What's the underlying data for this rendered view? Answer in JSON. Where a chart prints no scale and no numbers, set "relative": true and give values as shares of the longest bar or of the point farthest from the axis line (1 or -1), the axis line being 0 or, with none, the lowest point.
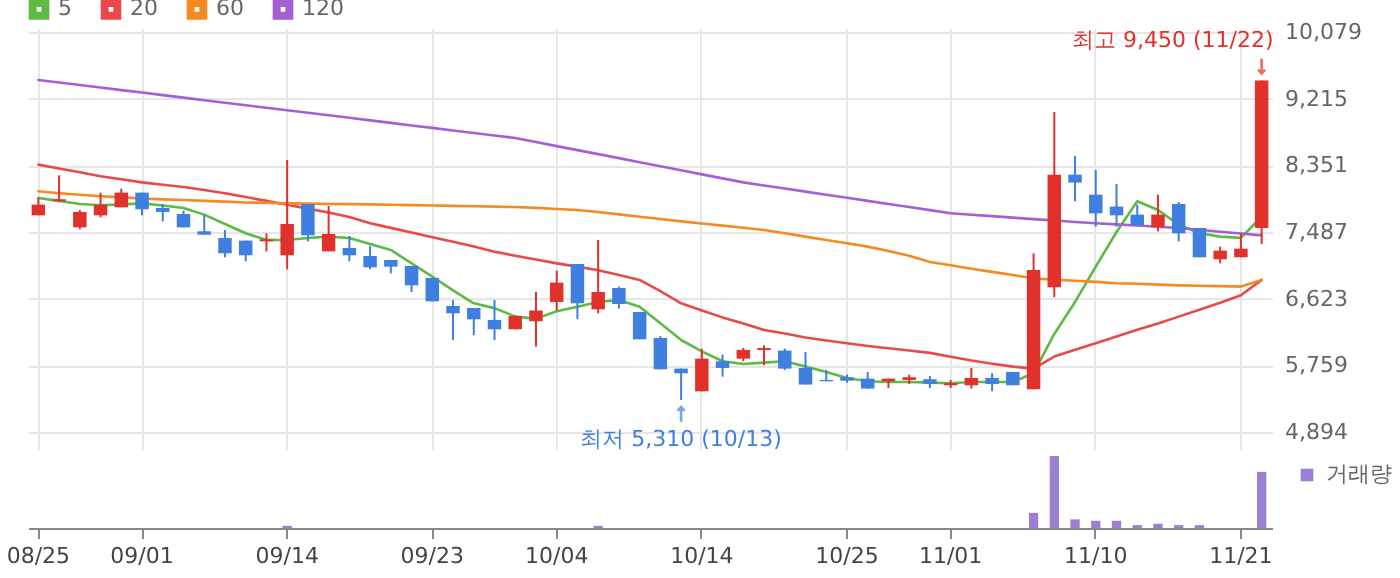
{
  "chart_data": [
    {
      "type": "candlestick",
      "categories": [
        null,
        null,
        null,
        null,
        null,
        null,
        null,
        null,
        null,
        null,
        null,
        null,
        null,
        null,
        null,
        null,
        null,
        null,
        null,
        null,
        null,
        null,
        null,
        null,
        null,
        null,
        null,
        null,
        null,
        null,
        null,
        null,
        null,
        null,
        null,
        null,
        null,
        null,
        null,
        null,
        null,
        null,
        null,
        null,
        null,
        null,
        null,
        null,
        null,
        null,
        null,
        null,
        null,
        null,
        null,
        null,
        null,
        null,
        null,
        null
      ],
      "ohlc": [
        [
          7703,
          7928,
          7703,
          7841
        ],
        [
          7884,
          8221,
          7876,
          7910
        ],
        [
          7547,
          7772,
          7522,
          7746
        ],
        [
          7703,
          7997,
          7677,
          7841
        ],
        [
          7807,
          8049,
          7807,
          7997
        ],
        [
          7997,
          7997,
          7703,
          7781
        ],
        [
          7798,
          7850,
          7625,
          7746
        ],
        [
          7720,
          7763,
          7547,
          7547
        ],
        [
          7496,
          7712,
          7452,
          7452
        ],
        [
          7409,
          7513,
          7159,
          7211
        ],
        [
          7375,
          7375,
          7107,
          7185
        ],
        [
          7366,
          7470,
          7236,
          7392
        ],
        [
          7185,
          8420,
          7003,
          7591
        ],
        [
          7850,
          7850,
          7366,
          7444
        ],
        [
          7236,
          7824,
          7236,
          7461
        ],
        [
          7280,
          7435,
          7107,
          7185
        ],
        [
          7176,
          7306,
          7003,
          7029
        ],
        [
          7124,
          7124,
          6951,
          7038
        ],
        [
          7046,
          7046,
          6709,
          6796
        ],
        [
          6891,
          6891,
          6588,
          6588
        ],
        [
          6528,
          6606,
          6087,
          6433
        ],
        [
          6502,
          6502,
          6148,
          6355
        ],
        [
          6347,
          6606,
          6087,
          6226
        ],
        [
          6226,
          6407,
          6226,
          6398
        ],
        [
          6329,
          6709,
          6001,
          6468
        ],
        [
          6580,
          6986,
          6468,
          6830
        ],
        [
          7072,
          7072,
          6355,
          6563
        ],
        [
          6485,
          7383,
          6433,
          6709
        ],
        [
          6761,
          6779,
          6493,
          6554
        ],
        [
          6450,
          6450,
          6096,
          6096
        ],
        [
          6113,
          6139,
          5707,
          5707
        ],
        [
          5716,
          5716,
          5310,
          5655
        ],
        [
          5422,
          5975,
          5422,
          5845
        ],
        [
          5811,
          5897,
          5612,
          5725
        ],
        [
          5845,
          5984,
          5811,
          5958
        ],
        [
          5958,
          6018,
          5759,
          5984
        ],
        [
          5949,
          5975,
          5699,
          5716
        ],
        [
          5725,
          5932,
          5509,
          5509
        ],
        [
          5569,
          5699,
          5552,
          5552
        ],
        [
          5604,
          5638,
          5534,
          5560
        ],
        [
          5586,
          5673,
          5457,
          5457
        ],
        [
          5552,
          5586,
          5465,
          5586
        ],
        [
          5569,
          5638,
          5517,
          5604
        ],
        [
          5578,
          5621,
          5465,
          5517
        ],
        [
          5500,
          5569,
          5466,
          5526
        ],
        [
          5500,
          5725,
          5457,
          5595
        ],
        [
          5595,
          5656,
          5423,
          5517
        ],
        [
          5673,
          5673,
          5500,
          5500
        ],
        [
          5448,
          7211,
          5448,
          6995
        ],
        [
          6770,
          9042,
          6641,
          8230
        ],
        [
          8230,
          8472,
          7885,
          8127
        ],
        [
          7971,
          8291,
          7556,
          7729
        ],
        [
          7816,
          8109,
          7556,
          7703
        ],
        [
          7712,
          7842,
          7574,
          7574
        ],
        [
          7548,
          7971,
          7496,
          7712
        ],
        [
          7850,
          7876,
          7366,
          7470
        ],
        [
          7539,
          7539,
          7159,
          7159
        ],
        [
          7133,
          7297,
          7081,
          7245
        ],
        [
          7159,
          7470,
          7159,
          7271
        ],
        [
          7539,
          9450,
          7332,
          9450
        ]
      ],
      "colors": [
        "#e0312b",
        "#e0312b",
        "#e0312b",
        "#e0312b",
        "#e0312b",
        "#3f7fe0",
        "#3f7fe0",
        "#3f7fe0",
        "#3f7fe0",
        "#3f7fe0",
        "#3f7fe0",
        "#e0312b",
        "#e0312b",
        "#3f7fe0",
        "#e0312b",
        "#3f7fe0",
        "#3f7fe0",
        "#3f7fe0",
        "#3f7fe0",
        "#3f7fe0",
        "#3f7fe0",
        "#3f7fe0",
        "#3f7fe0",
        "#e0312b",
        "#e0312b",
        "#e0312b",
        "#3f7fe0",
        "#e0312b",
        "#3f7fe0",
        "#3f7fe0",
        "#3f7fe0",
        "#3f7fe0",
        "#e0312b",
        "#3f7fe0",
        "#e0312b",
        "#e0312b",
        "#3f7fe0",
        "#3f7fe0",
        "#3f7fe0",
        "#3f7fe0",
        "#3f7fe0",
        "#e0312b",
        "#e0312b",
        "#3f7fe0",
        "#e0312b",
        "#e0312b",
        "#3f7fe0",
        "#3f7fe0",
        "#e0312b",
        "#e0312b",
        "#3f7fe0",
        "#3f7fe0",
        "#3f7fe0",
        "#3f7fe0",
        "#e0312b",
        "#3f7fe0",
        "#3f7fe0",
        "#e0312b",
        "#e0312b",
        "#e0312b"
      ],
      "series": [
        {
          "name": "5",
          "type": "line",
          "color": "#5dbb45",
          "values": [
            7928,
            7890,
            7850,
            7833,
            7845,
            7858,
            7830,
            7798,
            7712,
            7590,
            7470,
            7383,
            7383,
            7410,
            7426,
            7409,
            7330,
            7254,
            7081,
            6908,
            6730,
            6562,
            6500,
            6390,
            6364,
            6459,
            6519,
            6580,
            6606,
            6519,
            6303,
            6087,
            5940,
            5811,
            5776,
            5794,
            5811,
            5742,
            5673,
            5595,
            5552,
            5543,
            5543,
            5534,
            5526,
            5543,
            5543,
            5543,
            5656,
            6165,
            6580,
            7038,
            7487,
            7885,
            7772,
            7582,
            7470,
            7427,
            7410,
            7686
          ]
        },
        {
          "name": "20",
          "type": "line",
          "color": "#e84a4a",
          "values": [
            8360,
            8310,
            8260,
            8210,
            8170,
            8130,
            8100,
            8070,
            8030,
            7990,
            7940,
            7890,
            7840,
            7790,
            7740,
            7680,
            7600,
            7540,
            7480,
            7420,
            7360,
            7300,
            7230,
            7180,
            7130,
            7080,
            7038,
            6990,
            6930,
            6865,
            6720,
            6563,
            6470,
            6380,
            6300,
            6217,
            6170,
            6120,
            6080,
            6044,
            6010,
            5980,
            5950,
            5920,
            5870,
            5820,
            5780,
            5742,
            5716,
            5872,
            5960,
            6045,
            6131,
            6220,
            6300,
            6390,
            6480,
            6570,
            6667,
            6866
          ]
        },
        {
          "name": "60",
          "type": "line",
          "color": "#f58a22",
          "values": [
            8014,
            7990,
            7970,
            7950,
            7935,
            7920,
            7910,
            7902,
            7890,
            7880,
            7870,
            7865,
            7858,
            7855,
            7850,
            7848,
            7845,
            7840,
            7835,
            7830,
            7825,
            7820,
            7815,
            7810,
            7800,
            7785,
            7772,
            7745,
            7715,
            7685,
            7655,
            7625,
            7597,
            7569,
            7541,
            7513,
            7470,
            7427,
            7384,
            7340,
            7297,
            7240,
            7180,
            7098,
            7055,
            7010,
            6970,
            6930,
            6883,
            6870,
            6855,
            6840,
            6822,
            6815,
            6805,
            6795,
            6790,
            6785,
            6779,
            6866
          ]
        },
        {
          "name": "120",
          "type": "line",
          "color": "#a45fd4",
          "values": [
            9457,
            9424,
            9392,
            9359,
            9326,
            9294,
            9261,
            9228,
            9195,
            9163,
            9130,
            9097,
            9065,
            9032,
            8999,
            8967,
            8934,
            8901,
            8868,
            8836,
            8803,
            8770,
            8738,
            8705,
            8653,
            8600,
            8548,
            8496,
            8444,
            8391,
            8339,
            8287,
            8234,
            8182,
            8130,
            8090,
            8050,
            8010,
            7970,
            7930,
            7890,
            7850,
            7810,
            7770,
            7730,
            7711,
            7692,
            7673,
            7654,
            7635,
            7617,
            7601,
            7586,
            7570,
            7555,
            7539,
            7515,
            7491,
            7467,
            7443
          ]
        }
      ],
      "ylim": [
        4661,
        10131
      ],
      "yticks": [
        {
          "value": 4894,
          "label": "4,894"
        },
        {
          "value": 5759,
          "label": "5,759"
        },
        {
          "value": 6623,
          "label": "6,623"
        },
        {
          "value": 7487,
          "label": "7,487"
        },
        {
          "value": 8351,
          "label": "8,351"
        },
        {
          "value": 9215,
          "label": "9,215"
        },
        {
          "value": 10079,
          "label": "10,079"
        }
      ],
      "grid": true,
      "legend": "top left",
      "tick_labels": "y",
      "annotations": [
        "최고 9,450 (11/22)",
        {
          "text": "최저 5,310 (10/13)",
          "y": 5310
        }
      ]
    },
    {
      "type": "bar",
      "categories": [
        "08/25",
        null,
        null,
        null,
        null,
        "09/01",
        null,
        null,
        null,
        null,
        null,
        null,
        "09/14",
        null,
        null,
        null,
        null,
        null,
        null,
        "09/23",
        null,
        null,
        null,
        null,
        null,
        "10/04",
        null,
        null,
        null,
        null,
        null,
        null,
        "10/14",
        null,
        null,
        null,
        null,
        null,
        null,
        "10/25",
        null,
        null,
        null,
        null,
        "11/01",
        null,
        null,
        null,
        null,
        null,
        null,
        "11/10",
        null,
        null,
        null,
        null,
        null,
        null,
        "11/21",
        null
      ],
      "series": [
        {
          "name": "거래량",
          "color": "#9b7fd3",
          "values": [
            null,
            null,
            null,
            null,
            null,
            null,
            null,
            null,
            null,
            null,
            null,
            null,
            0.03,
            null,
            null,
            null,
            null,
            null,
            null,
            null,
            null,
            null,
            null,
            null,
            null,
            null,
            null,
            0.03,
            null,
            null,
            null,
            null,
            null,
            null,
            null,
            null,
            null,
            null,
            null,
            null,
            null,
            null,
            null,
            null,
            null,
            null,
            null,
            null,
            0.21,
            1,
            0.12,
            0.1,
            0.1,
            0.04,
            0.06,
            0.04,
            0.04,
            null,
            null,
            0.78
          ]
        }
      ],
      "relative": true,
      "legend": "top right",
      "tick_labels": "x"
    }
  ]
}
